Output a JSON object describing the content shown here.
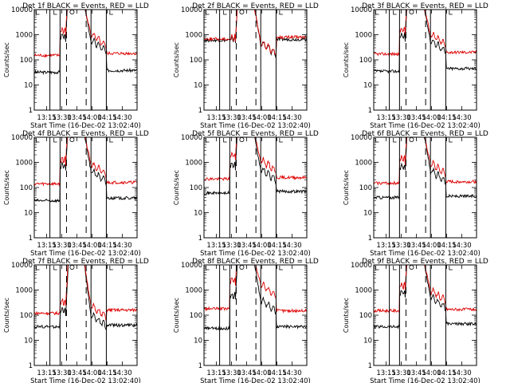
{
  "figure": {
    "y_tick_labels": [
      "1",
      "10",
      "100",
      "1000",
      "10000"
    ],
    "x_tick_labels": [
      "13:15",
      "13:30",
      "13:45",
      "14:00",
      "14:15",
      "14:30"
    ]
  },
  "chart_data": [
    {
      "type": "line",
      "title": "Det 1f BLACK = Events, RED = LLD",
      "xlabel": "Start Time (16-Dec-02 13:02:40)",
      "ylabel": "Counts/sec",
      "yscale": "log",
      "ylim": [
        1,
        10000
      ],
      "xlim_minutes": [
        0,
        102
      ],
      "series": [
        {
          "name": "Events",
          "color": "#000000",
          "pre_level": 32,
          "post_level": 38,
          "peak_level": 900
        },
        {
          "name": "LLD",
          "color": "#dd0000",
          "pre_level": 150,
          "post_level": 180,
          "peak_level": 1500
        }
      ]
    },
    {
      "type": "line",
      "title": "Det 2f BLACK = Events, RED = LLD",
      "xlabel": "Start Time (16-Dec-02 13:02:40)",
      "ylabel": "Counts/sec",
      "yscale": "log",
      "ylim": [
        1,
        10000
      ],
      "xlim_minutes": [
        0,
        102
      ],
      "series": [
        {
          "name": "Events",
          "color": "#000000",
          "pre_level": 600,
          "post_level": 650,
          "peak_level": 700
        },
        {
          "name": "LLD",
          "color": "#dd0000",
          "pre_level": 680,
          "post_level": 800,
          "peak_level": 760
        }
      ]
    },
    {
      "type": "line",
      "title": "Det 3f BLACK = Events, RED = LLD",
      "xlabel": "Start Time (16-Dec-02 13:02:40)",
      "ylabel": "Counts/sec",
      "yscale": "log",
      "ylim": [
        1,
        10000
      ],
      "xlim_minutes": [
        0,
        102
      ],
      "series": [
        {
          "name": "Events",
          "color": "#000000",
          "pre_level": 35,
          "post_level": 45,
          "peak_level": 900
        },
        {
          "name": "LLD",
          "color": "#dd0000",
          "pre_level": 170,
          "post_level": 200,
          "peak_level": 1600
        }
      ]
    },
    {
      "type": "line",
      "title": "Det 4f BLACK = Events, RED = LLD",
      "xlabel": "Start Time (16-Dec-02 13:02:40)",
      "ylabel": "Counts/sec",
      "yscale": "log",
      "ylim": [
        1,
        10000
      ],
      "xlim_minutes": [
        0,
        102
      ],
      "series": [
        {
          "name": "Events",
          "color": "#000000",
          "pre_level": 30,
          "post_level": 38,
          "peak_level": 700
        },
        {
          "name": "LLD",
          "color": "#dd0000",
          "pre_level": 140,
          "post_level": 160,
          "peak_level": 1300
        }
      ]
    },
    {
      "type": "line",
      "title": "Det 5f BLACK = Events, RED = LLD",
      "xlabel": "Start Time (16-Dec-02 13:02:40)",
      "ylabel": "Counts/sec",
      "yscale": "log",
      "ylim": [
        1,
        10000
      ],
      "xlim_minutes": [
        0,
        102
      ],
      "series": [
        {
          "name": "Events",
          "color": "#000000",
          "pre_level": 60,
          "post_level": 70,
          "peak_level": 800
        },
        {
          "name": "LLD",
          "color": "#dd0000",
          "pre_level": 220,
          "post_level": 250,
          "peak_level": 1900
        }
      ]
    },
    {
      "type": "line",
      "title": "Det 6f BLACK = Events, RED = LLD",
      "xlabel": "Start Time (16-Dec-02 13:02:40)",
      "ylabel": "Counts/sec",
      "yscale": "log",
      "ylim": [
        1,
        10000
      ],
      "xlim_minutes": [
        0,
        102
      ],
      "series": [
        {
          "name": "Events",
          "color": "#000000",
          "pre_level": 40,
          "post_level": 45,
          "peak_level": 700
        },
        {
          "name": "LLD",
          "color": "#dd0000",
          "pre_level": 150,
          "post_level": 170,
          "peak_level": 1400
        }
      ]
    },
    {
      "type": "line",
      "title": "Det 7f BLACK = Events, RED = LLD",
      "xlabel": "Start Time (16-Dec-02 13:02:40)",
      "ylabel": "Counts/sec",
      "yscale": "log",
      "ylim": [
        1,
        10000
      ],
      "xlim_minutes": [
        0,
        102
      ],
      "series": [
        {
          "name": "Events",
          "color": "#000000",
          "pre_level": 35,
          "post_level": 40,
          "peak_level": 150
        },
        {
          "name": "LLD",
          "color": "#dd0000",
          "pre_level": 120,
          "post_level": 160,
          "peak_level": 350
        }
      ]
    },
    {
      "type": "line",
      "title": "Det 8f BLACK = Events, RED = LLD",
      "xlabel": "Start Time (16-Dec-02 13:02:40)",
      "ylabel": "Counts/sec",
      "yscale": "log",
      "ylim": [
        1,
        10000
      ],
      "xlim_minutes": [
        0,
        102
      ],
      "series": [
        {
          "name": "Events",
          "color": "#000000",
          "pre_level": 30,
          "post_level": 35,
          "peak_level": 600
        },
        {
          "name": "LLD",
          "color": "#dd0000",
          "pre_level": 180,
          "post_level": 150,
          "peak_level": 2500
        }
      ]
    },
    {
      "type": "line",
      "title": "Det 9f BLACK = Events, RED = LLD",
      "xlabel": "Start Time (16-Dec-02 13:02:40)",
      "ylabel": "Counts/sec",
      "yscale": "log",
      "ylim": [
        1,
        10000
      ],
      "xlim_minutes": [
        0,
        102
      ],
      "series": [
        {
          "name": "Events",
          "color": "#000000",
          "pre_level": 35,
          "post_level": 45,
          "peak_level": 800
        },
        {
          "name": "LLD",
          "color": "#dd0000",
          "pre_level": 150,
          "post_level": 170,
          "peak_level": 1500
        }
      ]
    }
  ]
}
